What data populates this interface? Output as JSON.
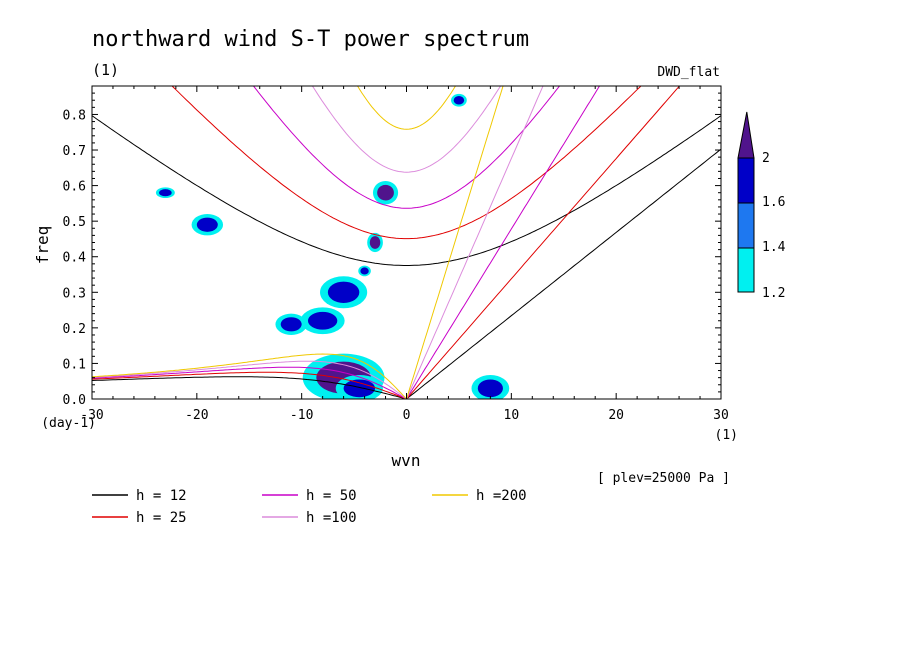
{
  "chart_data": {
    "type": "contour",
    "title": "northward wind S-T power spectrum",
    "subtitle_left": "(1)",
    "subtitle_right": "DWD_flat",
    "xlabel": "wvn",
    "ylabel": "freq",
    "x_unit": "(1)",
    "y_unit": "(day-1)",
    "annotation": "[ plev=25000 Pa ]",
    "xlim": [
      -30,
      30
    ],
    "ylim": [
      0,
      0.88
    ],
    "x_ticks": [
      -30,
      -20,
      -10,
      0,
      10,
      20,
      30
    ],
    "y_ticks": [
      0.0,
      0.1,
      0.2,
      0.3,
      0.4,
      0.5,
      0.6,
      0.7,
      0.8
    ],
    "x_tick_labels": [
      "-30",
      "-20",
      "-10",
      "0",
      "10",
      "20",
      "30"
    ],
    "y_tick_labels": [
      "0.0",
      "0.1",
      "0.2",
      "0.3",
      "0.4",
      "0.5",
      "0.6",
      "0.7",
      "0.8"
    ],
    "colorbar": {
      "levels": [
        1.2,
        1.4,
        1.6,
        2
      ],
      "labels": [
        "1.2",
        "1.4",
        "1.6",
        "2"
      ],
      "colors": [
        "#00f0f0",
        "#1e78f0",
        "#0000c8",
        "#50148c"
      ]
    },
    "dispersion_curves": [
      {
        "name": "h = 12",
        "h": 12,
        "color": "#000000"
      },
      {
        "name": "h = 25",
        "h": 25,
        "color": "#e00000"
      },
      {
        "name": "h = 50",
        "h": 50,
        "color": "#c800c8"
      },
      {
        "name": "h =100",
        "h": 100,
        "color": "#dc8cdc"
      },
      {
        "name": "h =200",
        "h": 200,
        "color": "#f0c800"
      }
    ],
    "shaded_regions": [
      {
        "x": -6,
        "y": 0.06,
        "rx": 2.6,
        "ry": 0.045,
        "level": 2
      },
      {
        "x": -4.5,
        "y": 0.03,
        "rx": 1.5,
        "ry": 0.025,
        "level": 1.6
      },
      {
        "x": -6,
        "y": 0.3,
        "rx": 1.5,
        "ry": 0.03,
        "level": 1.6
      },
      {
        "x": -8,
        "y": 0.22,
        "rx": 1.4,
        "ry": 0.025,
        "level": 1.6
      },
      {
        "x": -11,
        "y": 0.21,
        "rx": 1.0,
        "ry": 0.02,
        "level": 1.6
      },
      {
        "x": -2,
        "y": 0.58,
        "rx": 0.8,
        "ry": 0.022,
        "level": 2
      },
      {
        "x": -3,
        "y": 0.44,
        "rx": 0.5,
        "ry": 0.018,
        "level": 2
      },
      {
        "x": -4,
        "y": 0.36,
        "rx": 0.4,
        "ry": 0.01,
        "level": 1.6
      },
      {
        "x": 8,
        "y": 0.03,
        "rx": 1.2,
        "ry": 0.025,
        "level": 1.6
      },
      {
        "x": -19,
        "y": 0.49,
        "rx": 1.0,
        "ry": 0.02,
        "level": 1.6
      },
      {
        "x": -23,
        "y": 0.58,
        "rx": 0.6,
        "ry": 0.01,
        "level": 1.6
      },
      {
        "x": 5,
        "y": 0.84,
        "rx": 0.5,
        "ry": 0.012,
        "level": 1.6
      }
    ]
  }
}
